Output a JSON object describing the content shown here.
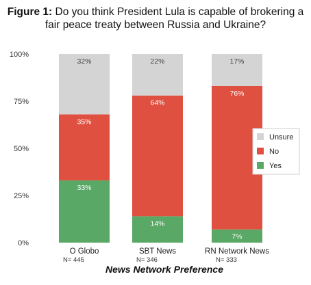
{
  "title": {
    "prefix": "Figure 1:",
    "text": "Do you think President Lula is capable of brokering a fair peace treaty between Russia and Ukraine?"
  },
  "chart_data": {
    "type": "bar",
    "stacked": true,
    "categories": [
      "O Globo",
      "SBT News",
      "RN Network News"
    ],
    "sample_sizes": [
      "N= 445",
      "N= 346",
      "N= 333"
    ],
    "series": [
      {
        "name": "Yes",
        "values": [
          33,
          14,
          7
        ],
        "color": "#5aa865"
      },
      {
        "name": "No",
        "values": [
          35,
          64,
          76
        ],
        "color": "#e05040"
      },
      {
        "name": "Unsure",
        "values": [
          32,
          22,
          17
        ],
        "color": "#d4d4d4"
      }
    ],
    "segment_labels": [
      [
        "33%",
        "14%",
        "7%"
      ],
      [
        "35%",
        "64%",
        "76%"
      ],
      [
        "32%",
        "22%",
        "17%"
      ]
    ],
    "yticks": [
      "0%",
      "25%",
      "50%",
      "75%",
      "100%"
    ],
    "ylim": [
      0,
      100
    ],
    "xlabel": "News Network Preference",
    "legend_order": [
      "Unsure",
      "No",
      "Yes"
    ],
    "legend_position": "right"
  }
}
